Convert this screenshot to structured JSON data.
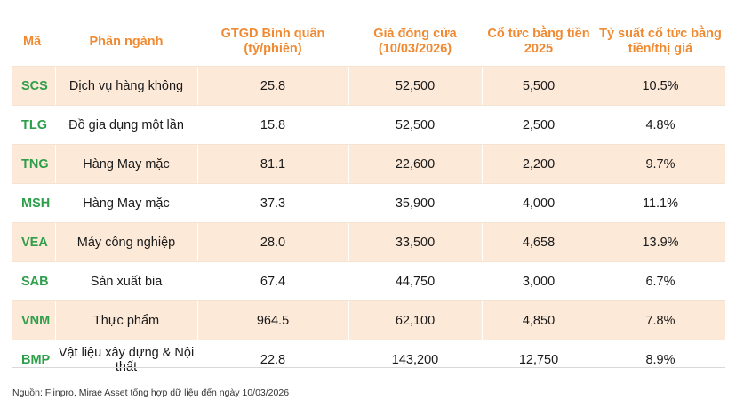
{
  "headers": {
    "code": "Mã",
    "sector": "Phân ngành",
    "avg_value": "GTGD Bình quân (tỷ/phiên)",
    "close_price": "Giá đóng cửa (10/03/2026)",
    "dividend": "Cổ tức bằng tiền 2025",
    "yield": "Tỷ suất cổ tức bằng tiền/thị giá"
  },
  "rows": [
    {
      "code": "SCS",
      "sector": "Dịch vụ hàng không",
      "avg_value": "25.8",
      "close_price": "52,500",
      "dividend": "5,500",
      "yield": "10.5%"
    },
    {
      "code": "TLG",
      "sector": "Đồ gia dụng một lần",
      "avg_value": "15.8",
      "close_price": "52,500",
      "dividend": "2,500",
      "yield": "4.8%"
    },
    {
      "code": "TNG",
      "sector": "Hàng May mặc",
      "avg_value": "81.1",
      "close_price": "22,600",
      "dividend": "2,200",
      "yield": "9.7%"
    },
    {
      "code": "MSH",
      "sector": "Hàng May mặc",
      "avg_value": "37.3",
      "close_price": "35,900",
      "dividend": "4,000",
      "yield": "11.1%"
    },
    {
      "code": "VEA",
      "sector": "Máy công nghiệp",
      "avg_value": "28.0",
      "close_price": "33,500",
      "dividend": "4,658",
      "yield": "13.9%"
    },
    {
      "code": "SAB",
      "sector": "Sản xuất bia",
      "avg_value": "67.4",
      "close_price": "44,750",
      "dividend": "3,000",
      "yield": "6.7%"
    },
    {
      "code": "VNM",
      "sector": "Thực phẩm",
      "avg_value": "964.5",
      "close_price": "62,100",
      "dividend": "4,850",
      "yield": "7.8%"
    },
    {
      "code": "BMP",
      "sector": "Vật liệu xây dựng & Nội thất",
      "avg_value": "22.8",
      "close_price": "143,200",
      "dividend": "12,750",
      "yield": "8.9%"
    }
  ],
  "source": "Nguồn: Fiinpro, Mirae Asset tổng hợp dữ liệu đến ngày 10/03/2026",
  "colors": {
    "header_text": "#f08a32",
    "code_text": "#2e9e4a",
    "row_shade": "#fde9d8"
  }
}
